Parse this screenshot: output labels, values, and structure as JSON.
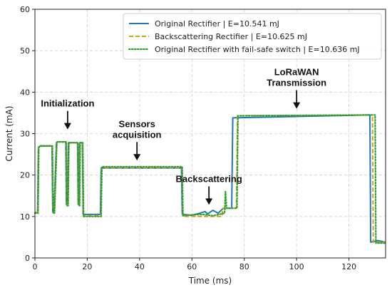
{
  "chart_data": {
    "type": "line",
    "xlabel": "Time (ms)",
    "ylabel": "Current (mA)",
    "xlim": [
      0,
      134
    ],
    "ylim": [
      0,
      60
    ],
    "xticks": [
      0,
      20,
      40,
      60,
      80,
      100,
      120
    ],
    "yticks": [
      0,
      10,
      20,
      30,
      40,
      50,
      60
    ],
    "grid": true,
    "legend_position": "top-right",
    "series": [
      {
        "name": "Original Rectifier | E=10.541 mJ",
        "color": "#1f77b4",
        "style": "solid",
        "x": [
          0,
          1,
          1.3,
          2,
          6.5,
          6.8,
          7.3,
          8.2,
          8.5,
          11.8,
          12,
          12.5,
          12.8,
          16.3,
          16.5,
          16.9,
          17.1,
          18.1,
          18.4,
          25,
          25.3,
          56,
          56.3,
          60,
          63,
          65,
          66,
          68,
          70,
          72,
          72.2,
          75.2,
          75.6,
          128,
          128.3,
          131,
          134
        ],
        "y": [
          11,
          11,
          26.5,
          27,
          27,
          11,
          11,
          27.8,
          28,
          28,
          13,
          13,
          27.8,
          27.8,
          13,
          13,
          27.8,
          27.8,
          10.5,
          10.5,
          21.7,
          21.7,
          10.5,
          10.3,
          10.8,
          11.2,
          10.6,
          11.5,
          10.8,
          12,
          12,
          12,
          33.8,
          34.5,
          3.8,
          4.2,
          3.8
        ]
      },
      {
        "name": "Backscattering Rectifier | E=10.625 mJ",
        "color": "#d4a017",
        "style": "dashed",
        "x": [
          0,
          1.1,
          1.4,
          2,
          6.6,
          6.9,
          7.4,
          8.3,
          8.6,
          11.9,
          12.1,
          12.6,
          12.9,
          16.4,
          16.6,
          17,
          17.2,
          18.2,
          18.5,
          25.2,
          25.5,
          56.2,
          56.5,
          60,
          65,
          70,
          71.5,
          71.8,
          77,
          77.4,
          129,
          129.3,
          134
        ],
        "y": [
          11,
          11,
          26.8,
          27.1,
          27.1,
          11,
          11,
          27.8,
          28,
          28,
          12.8,
          12.8,
          27.8,
          27.8,
          12.8,
          12.8,
          27.8,
          27.8,
          10.2,
          10.2,
          21.8,
          21.8,
          10,
          10,
          10,
          10,
          10,
          12,
          12,
          34.3,
          34.5,
          3.8,
          3.8
        ]
      },
      {
        "name": "Original Rectifier with fail-safe switch | E=10.636 mJ",
        "color": "#2ca02c",
        "style": "dotted",
        "x": [
          0,
          1.2,
          1.5,
          2,
          6.7,
          7,
          7.5,
          8.4,
          8.7,
          12,
          12.2,
          12.7,
          13,
          16.5,
          16.7,
          17.1,
          17.3,
          18.3,
          18.6,
          25.3,
          25.6,
          56.3,
          56.6,
          60,
          64,
          68,
          72.5,
          72.8,
          73.2,
          77.2,
          77.6,
          130,
          130.3,
          134
        ],
        "y": [
          10.8,
          10.8,
          26.8,
          27,
          27,
          10.8,
          10.8,
          27.8,
          28,
          28,
          12.6,
          12.6,
          27.8,
          27.8,
          12.6,
          12.6,
          27.8,
          27.8,
          10,
          10,
          22,
          22,
          10.2,
          10.4,
          10.5,
          10.2,
          10.8,
          16,
          12,
          12,
          34.3,
          34.5,
          3.6,
          3.6
        ]
      }
    ],
    "annotations": [
      {
        "label": "Initialization",
        "x": 12.5,
        "y": 31
      },
      {
        "label": "Sensors\nacquisition",
        "x": 39,
        "y": 23.5
      },
      {
        "label": "Backscattering",
        "x": 66.5,
        "y": 12.8
      },
      {
        "label": "LoRaWAN\nTransmission",
        "x": 100,
        "y": 36
      }
    ]
  }
}
